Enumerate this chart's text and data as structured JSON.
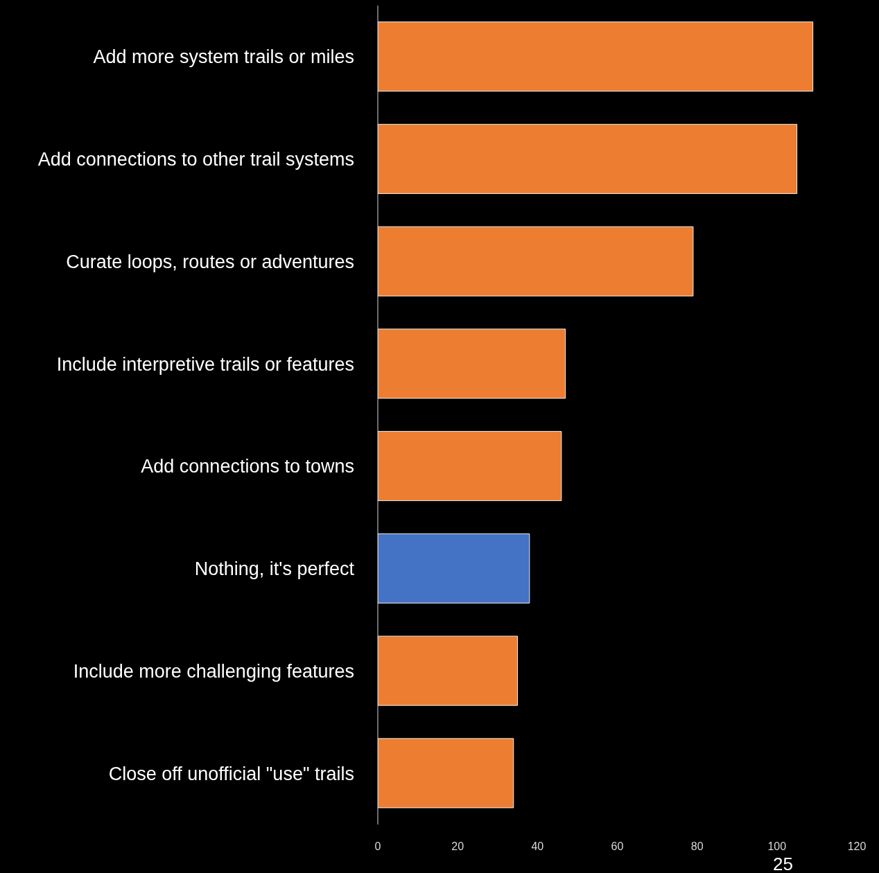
{
  "chart_data": {
    "type": "bar",
    "orientation": "horizontal",
    "categories": [
      "Add more system trails or miles",
      "Add connections to other trail systems",
      "Curate loops, routes or adventures",
      "Include interpretive trails or features",
      "Add connections to towns",
      "Nothing, it's perfect",
      "Include more challenging features",
      "Close off unofficial \"use\" trails"
    ],
    "values": [
      109,
      105,
      79,
      47,
      46,
      38,
      35,
      34
    ],
    "colors": [
      "#ed7d31",
      "#ed7d31",
      "#ed7d31",
      "#ed7d31",
      "#ed7d31",
      "#4472c4",
      "#ed7d31",
      "#ed7d31"
    ],
    "xlim": [
      0,
      120
    ],
    "xticks": [
      0,
      20,
      40,
      60,
      80,
      100,
      120
    ],
    "annotations": [
      "25"
    ]
  }
}
